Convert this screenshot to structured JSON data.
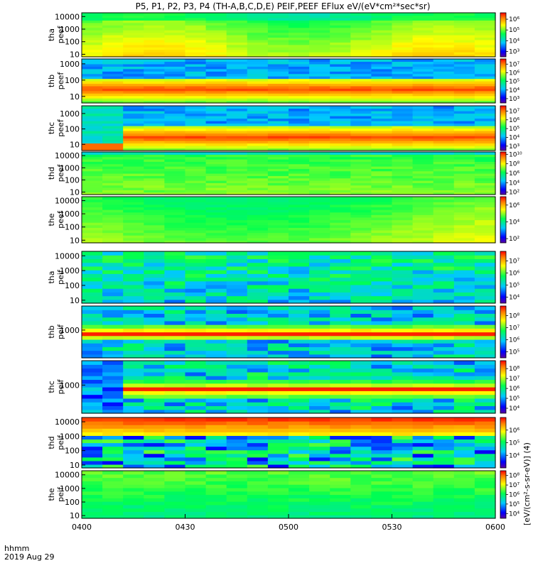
{
  "chart_data": {
    "type": "heatmap",
    "title": "P5, P1, P2, P3, P4 (TH-A,B,C,D,E) PEIF,PEEF EFlux eV/(eV*cm²*sec*sr)",
    "x_ticks": [
      "0400",
      "0430",
      "0500",
      "0530",
      "0600"
    ],
    "x_range": [
      "0400",
      "0600"
    ],
    "x_ticks_minutes": [
      0,
      30,
      60,
      90,
      120
    ],
    "x_label_top": "hhmm",
    "x_label_bottom": "2019 Aug 29",
    "colorbar_label": "[eV/(cm²-s-sr-eV)] (4)",
    "colorscale": "rainbow (blue-cyan-green-yellow-red)",
    "panels": [
      {
        "label": [
          "tha",
          "peef"
        ],
        "y_ticks": [
          "10000",
          "1000",
          "100",
          "10"
        ],
        "y_tick_exp": [
          4,
          3,
          2,
          1
        ],
        "y_range_exp": [
          0.8,
          4.3
        ],
        "cb_ticks": [
          "10⁶",
          "10⁵",
          "10⁴",
          "10³"
        ],
        "cb_tick_exp": [
          6,
          5,
          4,
          3
        ],
        "cb_range_exp": [
          2.5,
          6.6
        ],
        "pattern": "smooth"
      },
      {
        "label": [
          "thb",
          "peef"
        ],
        "y_ticks": [
          "1000",
          "100",
          "10"
        ],
        "y_tick_exp": [
          3,
          2,
          1
        ],
        "y_range_exp": [
          0.6,
          3.3
        ],
        "cb_ticks": [
          "10⁷",
          "10⁶",
          "10⁵",
          "10⁴",
          "10³"
        ],
        "cb_tick_exp": [
          7,
          6,
          5,
          4,
          3
        ],
        "cb_range_exp": [
          2.5,
          7.6
        ],
        "pattern": "banded"
      },
      {
        "label": [
          "thc",
          "peef"
        ],
        "y_ticks": [
          "1000",
          "100",
          "10"
        ],
        "y_tick_exp": [
          3,
          2,
          1
        ],
        "y_range_exp": [
          0.6,
          3.5
        ],
        "cb_ticks": [
          "10⁷",
          "10⁶",
          "10⁵",
          "10⁴",
          "10³"
        ],
        "cb_tick_exp": [
          7,
          6,
          5,
          4,
          3
        ],
        "cb_range_exp": [
          2.5,
          7.6
        ],
        "pattern": "banded_step"
      },
      {
        "label": [
          "thd",
          "peef"
        ],
        "y_ticks": [
          "10000",
          "1000",
          "100",
          "10"
        ],
        "y_tick_exp": [
          4,
          3,
          2,
          1
        ],
        "y_range_exp": [
          0.8,
          4.3
        ],
        "cb_ticks": [
          "10¹⁰",
          "10⁸",
          "10⁶",
          "10⁴",
          "10²"
        ],
        "cb_tick_exp": [
          10,
          8,
          6,
          4,
          2
        ],
        "cb_range_exp": [
          1.5,
          10.5
        ],
        "pattern": "fine"
      },
      {
        "label": [
          "the",
          "peef"
        ],
        "y_ticks": [
          "10000",
          "1000",
          "100",
          "10"
        ],
        "y_tick_exp": [
          4,
          3,
          2,
          1
        ],
        "y_range_exp": [
          0.8,
          4.3
        ],
        "cb_ticks": [
          "10⁶",
          "10⁴",
          "10²"
        ],
        "cb_tick_exp": [
          6,
          4,
          2
        ],
        "cb_range_exp": [
          1.5,
          7.0
        ],
        "pattern": "smooth_low"
      },
      {
        "label": [
          "tha",
          "peif"
        ],
        "y_ticks": [
          "10000",
          "1000",
          "100",
          "10"
        ],
        "y_tick_exp": [
          4,
          3,
          2,
          1
        ],
        "y_range_exp": [
          0.8,
          4.3
        ],
        "cb_ticks": [
          "10⁷",
          "10⁶",
          "10⁵",
          "10⁴"
        ],
        "cb_tick_exp": [
          7,
          6,
          5,
          4
        ],
        "cb_range_exp": [
          3.5,
          7.8
        ],
        "pattern": "ion_blue"
      },
      {
        "label": [
          "thb",
          "peif"
        ],
        "y_ticks": [
          "1000"
        ],
        "y_tick_exp": [
          3
        ],
        "y_range_exp": [
          1.5,
          4.3
        ],
        "cb_ticks": [
          "10⁸",
          "10⁷",
          "10⁶",
          "10⁵"
        ],
        "cb_tick_exp": [
          8,
          7,
          6,
          5
        ],
        "cb_range_exp": [
          4.5,
          8.8
        ],
        "pattern": "ion_red_band"
      },
      {
        "label": [
          "thc",
          "peif"
        ],
        "y_ticks": [
          "1000"
        ],
        "y_tick_exp": [
          3
        ],
        "y_range_exp": [
          1.5,
          4.3
        ],
        "cb_ticks": [
          "10⁸",
          "10⁷",
          "10⁶",
          "10⁵",
          "10⁴"
        ],
        "cb_tick_exp": [
          8,
          7,
          6,
          5,
          4
        ],
        "cb_range_exp": [
          3.5,
          8.8
        ],
        "pattern": "ion_red_band_step"
      },
      {
        "label": [
          "thd",
          "peif"
        ],
        "y_ticks": [
          "10000",
          "1000",
          "100",
          "10"
        ],
        "y_tick_exp": [
          4,
          3,
          2,
          1
        ],
        "y_range_exp": [
          0.8,
          4.3
        ],
        "cb_ticks": [
          "10⁶",
          "10⁵",
          "10⁴"
        ],
        "cb_tick_exp": [
          6,
          5,
          4
        ],
        "cb_range_exp": [
          3.0,
          7.0
        ],
        "pattern": "ion_speckle"
      },
      {
        "label": [
          "the",
          "peif"
        ],
        "y_ticks": [
          "10000",
          "1000",
          "100",
          "10"
        ],
        "y_tick_exp": [
          4,
          3,
          2,
          1
        ],
        "y_range_exp": [
          0.8,
          4.3
        ],
        "cb_ticks": [
          "10⁸",
          "10⁷",
          "10⁶",
          "10⁵",
          "10⁴"
        ],
        "cb_tick_exp": [
          8,
          7,
          6,
          5,
          4
        ],
        "cb_range_exp": [
          3.5,
          8.5
        ],
        "pattern": "ion_smooth"
      }
    ]
  }
}
